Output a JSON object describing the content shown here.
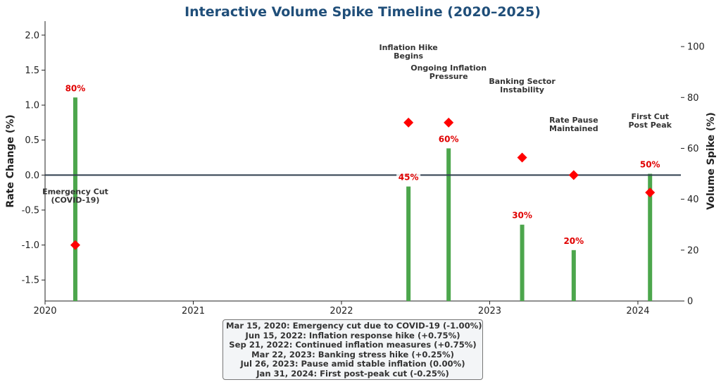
{
  "chart_data": {
    "type": "bar",
    "title": "Interactive Volume Spike Timeline (2020–2025)",
    "ylabel_left": "Rate Change (%)",
    "ylabel_right": "Volume Spike (%)",
    "xlim": [
      2020.0,
      2024.29
    ],
    "ylim_left": [
      -1.8,
      2.2
    ],
    "ylim_right": [
      0,
      110
    ],
    "x_ticks": [
      2020,
      2021,
      2022,
      2023,
      2024
    ],
    "y_left_ticks": [
      -1.5,
      -1.0,
      -0.5,
      0.0,
      0.5,
      1.0,
      1.5,
      2.0
    ],
    "y_right_ticks": [
      0,
      20,
      40,
      60,
      80,
      100
    ],
    "events": [
      {
        "date": "Mar 15, 2020",
        "x": 2020.204,
        "rate_change": -1.0,
        "volume_spike": 80,
        "volume_label": "80%",
        "label": [
          "Emergency Cut",
          "(COVID-19)"
        ]
      },
      {
        "date": "Jun 15, 2022",
        "x": 2022.452,
        "rate_change": 0.75,
        "volume_spike": 45,
        "volume_label": "45%",
        "label": [
          "Inflation Hike",
          "Begins"
        ]
      },
      {
        "date": "Sep 21, 2022",
        "x": 2022.723,
        "rate_change": 0.75,
        "volume_spike": 60,
        "volume_label": "60%",
        "label": [
          "Ongoing Inflation",
          "Pressure"
        ]
      },
      {
        "date": "Mar 22, 2023",
        "x": 2023.219,
        "rate_change": 0.25,
        "volume_spike": 30,
        "volume_label": "30%",
        "label": [
          "Banking Sector",
          "Instability"
        ]
      },
      {
        "date": "Jul 26, 2023",
        "x": 2023.567,
        "rate_change": 0.0,
        "volume_spike": 20,
        "volume_label": "20%",
        "label": [
          "Rate Pause",
          "Maintained"
        ]
      },
      {
        "date": "Jan 31, 2024",
        "x": 2024.082,
        "rate_change": -0.25,
        "volume_spike": 50,
        "volume_label": "50%",
        "label": [
          "First Cut",
          "Post Peak"
        ]
      }
    ],
    "summary": [
      "Mar 15, 2020: Emergency cut due to COVID-19 (-1.00%)",
      "Jun 15, 2022: Inflation response hike (+0.75%)",
      "Sep 21, 2022: Continued inflation measures (+0.75%)",
      "Mar 22, 2023: Banking stress hike (+0.25%)",
      "Jul 26, 2023: Pause amid stable inflation (0.00%)",
      "Jan 31, 2024: First post-peak cut (-0.25%)"
    ],
    "colors": {
      "bar": "#4ca64c",
      "marker": "#ff0000",
      "zero_line": "#2f3e4e",
      "title": "#1f4e79",
      "pct_label": "#e00000"
    }
  }
}
